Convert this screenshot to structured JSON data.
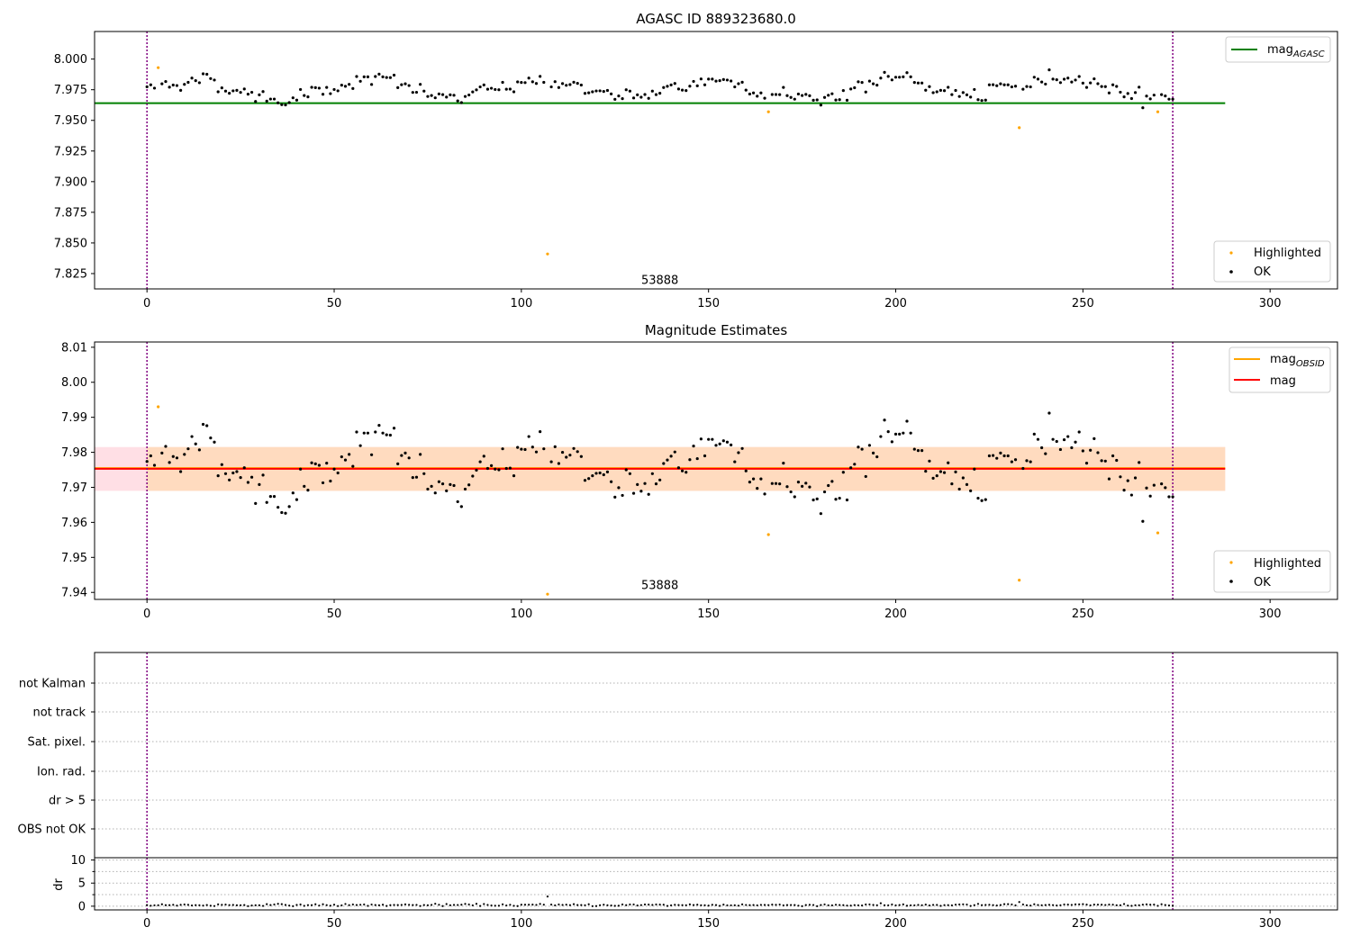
{
  "figure": {
    "panel1_title": "AGASC ID 889323680.0",
    "panel2_title": "Magnitude Estimates",
    "obsid_label": "53888"
  },
  "legend": {
    "mag_agasc_main": "mag",
    "mag_agasc_sub": "AGASC",
    "mag_obsid_main": "mag",
    "mag_obsid_sub": "OBSID",
    "mag": "mag",
    "highlighted": "Highlighted",
    "ok": "OK"
  },
  "colors": {
    "ok": "#000000",
    "highlighted": "#ffa500",
    "agasc_line": "#008000",
    "mag_line": "#ff0000",
    "mag_obsid_line": "#ffa500",
    "obs_boundary": "#800080",
    "band_outer": "#ffc0cb",
    "band_inner": "#ffdab9",
    "grid": "#b0b0b0"
  },
  "chart_data": [
    {
      "type": "scatter",
      "title": "AGASC ID 889323680.0",
      "xlim": [
        -14,
        318
      ],
      "ylim": [
        7.8125,
        8.0225
      ],
      "xticks": [
        0,
        50,
        100,
        150,
        200,
        250,
        300
      ],
      "yticks": [
        7.825,
        7.85,
        7.875,
        7.9,
        7.925,
        7.95,
        7.975,
        8.0
      ],
      "ytick_labels": [
        "7.825",
        "7.850",
        "7.875",
        "7.900",
        "7.925",
        "7.950",
        "7.975",
        "8.000"
      ],
      "hlines": [
        {
          "name": "mag_AGASC",
          "y": 7.964,
          "x_range": [
            -14,
            288
          ]
        }
      ],
      "vlines": [
        0,
        274
      ],
      "annotations": [
        {
          "text": "53888",
          "x": 137,
          "y": 7.8165
        }
      ],
      "highlighted_points": [
        [
          3,
          7.993
        ],
        [
          107,
          7.841
        ],
        [
          166,
          7.957
        ],
        [
          233,
          7.944
        ],
        [
          270,
          7.957
        ]
      ],
      "legend": [
        "mag_AGASC",
        "Highlighted",
        "OK"
      ]
    },
    {
      "type": "scatter",
      "title": "Magnitude Estimates",
      "xlim": [
        -14,
        318
      ],
      "ylim": [
        7.938,
        8.0115
      ],
      "xticks": [
        0,
        50,
        100,
        150,
        200,
        250,
        300
      ],
      "yticks": [
        7.94,
        7.95,
        7.96,
        7.97,
        7.98,
        7.99,
        8.0,
        8.01
      ],
      "ytick_labels": [
        "7.94",
        "7.95",
        "7.96",
        "7.97",
        "7.98",
        "7.99",
        "8.00",
        "8.01"
      ],
      "hlines": [
        {
          "name": "mag_OBSID",
          "y": 7.9755,
          "x_range": [
            -14,
            288
          ]
        },
        {
          "name": "mag",
          "y": 7.9753,
          "x_range": [
            -14,
            288
          ]
        }
      ],
      "bands": [
        {
          "y": [
            7.969,
            7.9815
          ],
          "x_range": [
            -14,
            288
          ],
          "color": "band_outer"
        },
        {
          "y": [
            7.969,
            7.9815
          ],
          "x_range": [
            0,
            288
          ],
          "color": "band_inner"
        }
      ],
      "vlines": [
        0,
        274
      ],
      "annotations": [
        {
          "text": "53888",
          "x": 137,
          "y": 7.941
        }
      ],
      "highlighted_points": [
        [
          3,
          7.993
        ],
        [
          107,
          7.9395
        ],
        [
          166,
          7.9565
        ],
        [
          233,
          7.9435
        ],
        [
          270,
          7.957
        ]
      ],
      "legend": [
        "mag_OBSID",
        "mag",
        "Highlighted",
        "OK"
      ]
    },
    {
      "type": "scatter",
      "title": "",
      "xlim": [
        -14,
        318
      ],
      "categories": [
        "OBS not OK",
        "dr > 5",
        "Ion. rad.",
        "Sat. pixel.",
        "not track",
        "not Kalman"
      ],
      "flags": [],
      "vlines": [
        0,
        274
      ]
    },
    {
      "type": "scatter",
      "title": "",
      "xlim": [
        -14,
        318
      ],
      "ylim": [
        -0.8,
        10.5
      ],
      "ylabel": "dr",
      "xticks": [
        0,
        50,
        100,
        150,
        200,
        250,
        300
      ],
      "yticks": [
        0,
        5,
        10
      ],
      "minor_yticks": [
        2.5,
        7.5
      ],
      "outliers": [
        [
          107,
          2.1
        ],
        [
          233,
          0.9
        ]
      ],
      "vlines": [
        0,
        274
      ]
    }
  ]
}
